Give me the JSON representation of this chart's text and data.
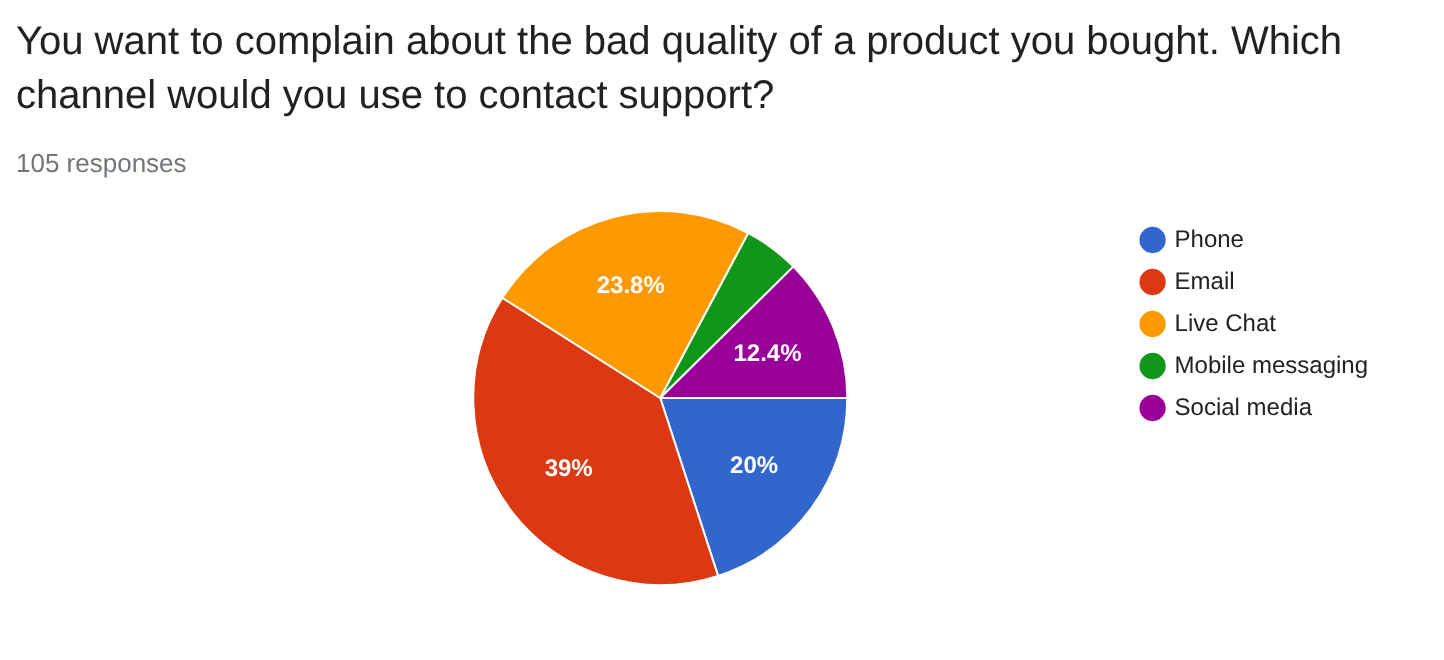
{
  "chart_data": {
    "type": "pie",
    "title": "You want to complain about the bad quality of a product you bought. Which channel would you use to contact support?",
    "subtitle": "105 responses",
    "categories": [
      "Phone",
      "Email",
      "Live Chat",
      "Mobile messaging",
      "Social media"
    ],
    "values": [
      20,
      39,
      23.8,
      4.8,
      12.4
    ],
    "colors": [
      "#3366cc",
      "#dc3912",
      "#ff9900",
      "#109618",
      "#990099"
    ],
    "value_labels": [
      "20%",
      "39%",
      "23.8%",
      null,
      "12.4%"
    ],
    "legend": "right"
  }
}
